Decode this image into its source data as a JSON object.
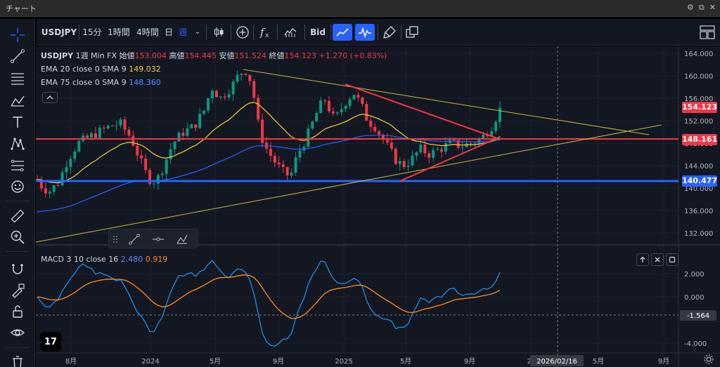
{
  "window": {
    "title": "チャート"
  },
  "toolbar": {
    "symbol": "USDJPY",
    "intervals": [
      {
        "label": "15分",
        "active": false
      },
      {
        "label": "1時間",
        "active": false
      },
      {
        "label": "4時間",
        "active": false
      },
      {
        "label": "日",
        "active": false
      },
      {
        "label": "週",
        "active": true
      }
    ],
    "bid_label": "Bid"
  },
  "legend": {
    "symbol": "USDJPY",
    "interval": "1週",
    "source": "Min FX",
    "open_label": "始値",
    "open": "153.004",
    "high_label": "高値",
    "high": "154.445",
    "low_label": "安値",
    "low": "151.524",
    "close_label": "終値",
    "close": "154.123",
    "change": "+1.270 (+0.83%)",
    "ema20_label": "EMA 20 close 0 SMA 9",
    "ema20_value": "149.032",
    "ema75_label": "EMA 75 close 0 SMA 9",
    "ema75_value": "148.360"
  },
  "macd": {
    "label": "MACD 3 10 close 16",
    "macd_value": "2.480",
    "signal_value": "0.919"
  },
  "colors": {
    "bull": "#089981",
    "bear": "#f23645",
    "ema20": "#f0d33a",
    "ema75": "#2962ff",
    "hline_red": "#f23645",
    "hline_blue": "#2962ff",
    "trend_yellow": "#c9b84a",
    "macd_line": "#2196f3",
    "signal_line": "#ff8c1a"
  },
  "price_axis": {
    "ticks": [
      "164.000",
      "160.000",
      "156.000",
      "152.000",
      "148.000",
      "144.000",
      "140.000",
      "136.000",
      "132.000"
    ]
  },
  "price_badges": {
    "current": "154.123",
    "red_line": "148.161",
    "blue_line": "140.477"
  },
  "macd_axis": {
    "ticks": [
      "2.000",
      "0.000",
      "-4.000"
    ],
    "crosshair_value": "-1.564"
  },
  "time_axis": {
    "ticks": [
      "8月",
      "2024",
      "5月",
      "9月",
      "2025",
      "5月",
      "9月",
      "20",
      "5月",
      "9月"
    ],
    "crosshair_date": "2026/02/16"
  },
  "drawings": {
    "red_hline": 148.161,
    "blue_hline": 140.477
  },
  "logo": {
    "text": "17"
  }
}
